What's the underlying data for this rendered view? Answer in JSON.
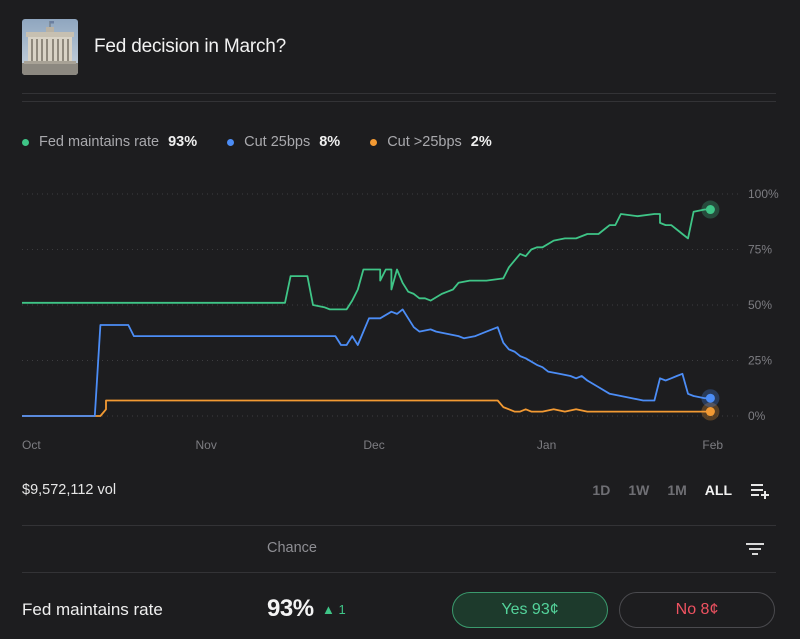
{
  "market": {
    "title": "Fed decision in March?"
  },
  "legend": [
    {
      "label": "Fed maintains rate",
      "value": "93%",
      "color": "#3fc587"
    },
    {
      "label": "Cut 25bps",
      "value": "8%",
      "color": "#4c8df6"
    },
    {
      "label": "Cut >25bps",
      "value": "2%",
      "color": "#f39a33"
    }
  ],
  "volume": "$9,572,112 vol",
  "time_ranges": [
    "1D",
    "1W",
    "1M",
    "ALL"
  ],
  "active_range": "ALL",
  "table": {
    "chance_label": "Chance"
  },
  "outcome": {
    "name": "Fed maintains rate",
    "chance": "93%",
    "change": "▲ 1",
    "yes_label": "Yes 93¢",
    "no_label": "No 8¢"
  },
  "chart_data": {
    "type": "line",
    "x_tick_labels": [
      "Oct",
      "Nov",
      "Dec",
      "Jan",
      "Feb"
    ],
    "y_tick_labels": [
      "100%",
      "75%",
      "50%",
      "25%",
      "0%"
    ],
    "ylim": [
      0,
      100
    ],
    "grid": true,
    "x_units": "days since Oct 1",
    "x_ticks": [
      0,
      31,
      61,
      92,
      123
    ],
    "series": [
      {
        "name": "Fed maintains rate",
        "color": "#3fc587",
        "points": [
          [
            0,
            51
          ],
          [
            15,
            51
          ],
          [
            30,
            51
          ],
          [
            45,
            51
          ],
          [
            47,
            51
          ],
          [
            48,
            63
          ],
          [
            51,
            63
          ],
          [
            52,
            50
          ],
          [
            54,
            49
          ],
          [
            55,
            48
          ],
          [
            58,
            48
          ],
          [
            59,
            52
          ],
          [
            60,
            57
          ],
          [
            61,
            66
          ],
          [
            64,
            66
          ],
          [
            64,
            61
          ],
          [
            65,
            66
          ],
          [
            66,
            66
          ],
          [
            66,
            57
          ],
          [
            67,
            66
          ],
          [
            68,
            60
          ],
          [
            69,
            56
          ],
          [
            70,
            55
          ],
          [
            71,
            53
          ],
          [
            72,
            53
          ],
          [
            73,
            52
          ],
          [
            75,
            55
          ],
          [
            76,
            56
          ],
          [
            77,
            57
          ],
          [
            78,
            60
          ],
          [
            80,
            61
          ],
          [
            83,
            61
          ],
          [
            86,
            62
          ],
          [
            87,
            67
          ],
          [
            88,
            70
          ],
          [
            89,
            73
          ],
          [
            90,
            72
          ],
          [
            91,
            75
          ],
          [
            92,
            76
          ],
          [
            93,
            76
          ],
          [
            95,
            79
          ],
          [
            97,
            80
          ],
          [
            99,
            80
          ],
          [
            101,
            82
          ],
          [
            103,
            82
          ],
          [
            104,
            84
          ],
          [
            105,
            86
          ],
          [
            106,
            86
          ],
          [
            107,
            91
          ],
          [
            110,
            90
          ],
          [
            113,
            91
          ],
          [
            114,
            91
          ],
          [
            114,
            87
          ],
          [
            115,
            86
          ],
          [
            116,
            86
          ],
          [
            117,
            84
          ],
          [
            118,
            82
          ],
          [
            119,
            80
          ],
          [
            120,
            92
          ],
          [
            122,
            93
          ],
          [
            123,
            93
          ]
        ]
      },
      {
        "name": "Cut 25bps",
        "color": "#4c8df6",
        "points": [
          [
            0,
            0
          ],
          [
            13,
            0
          ],
          [
            14,
            41
          ],
          [
            19,
            41
          ],
          [
            20,
            36
          ],
          [
            25,
            36
          ],
          [
            40,
            36
          ],
          [
            56,
            36
          ],
          [
            57,
            32
          ],
          [
            58,
            32
          ],
          [
            59,
            36
          ],
          [
            60,
            32
          ],
          [
            61,
            38
          ],
          [
            62,
            44
          ],
          [
            64,
            44
          ],
          [
            66,
            47
          ],
          [
            67,
            46
          ],
          [
            68,
            48
          ],
          [
            69,
            44
          ],
          [
            70,
            40
          ],
          [
            71,
            38
          ],
          [
            73,
            39
          ],
          [
            74,
            38
          ],
          [
            76,
            37
          ],
          [
            78,
            36
          ],
          [
            79,
            35
          ],
          [
            81,
            36
          ],
          [
            83,
            38
          ],
          [
            85,
            40
          ],
          [
            86,
            33
          ],
          [
            87,
            30
          ],
          [
            88,
            29
          ],
          [
            89,
            27
          ],
          [
            90,
            26
          ],
          [
            92,
            23
          ],
          [
            93,
            22
          ],
          [
            94,
            20
          ],
          [
            96,
            19
          ],
          [
            98,
            18
          ],
          [
            99,
            17
          ],
          [
            100,
            18
          ],
          [
            101,
            16
          ],
          [
            103,
            13
          ],
          [
            105,
            10
          ],
          [
            107,
            9
          ],
          [
            109,
            8
          ],
          [
            111,
            7
          ],
          [
            113,
            7
          ],
          [
            114,
            17
          ],
          [
            115,
            16
          ],
          [
            116,
            17
          ],
          [
            117,
            18
          ],
          [
            118,
            19
          ],
          [
            119,
            10
          ],
          [
            120,
            9
          ],
          [
            122,
            8
          ],
          [
            123,
            8
          ]
        ]
      },
      {
        "name": "Cut >25bps",
        "color": "#f39a33",
        "points": [
          [
            0,
            0
          ],
          [
            14,
            0
          ],
          [
            15,
            3
          ],
          [
            15,
            7
          ],
          [
            40,
            7
          ],
          [
            70,
            7
          ],
          [
            85,
            7
          ],
          [
            86,
            4
          ],
          [
            87,
            3
          ],
          [
            88,
            2
          ],
          [
            89,
            2
          ],
          [
            90,
            3
          ],
          [
            91,
            2
          ],
          [
            93,
            2
          ],
          [
            95,
            3
          ],
          [
            97,
            2
          ],
          [
            99,
            3
          ],
          [
            101,
            2
          ],
          [
            105,
            2
          ],
          [
            110,
            2
          ],
          [
            115,
            2
          ],
          [
            120,
            2
          ],
          [
            123,
            2
          ]
        ]
      }
    ]
  }
}
